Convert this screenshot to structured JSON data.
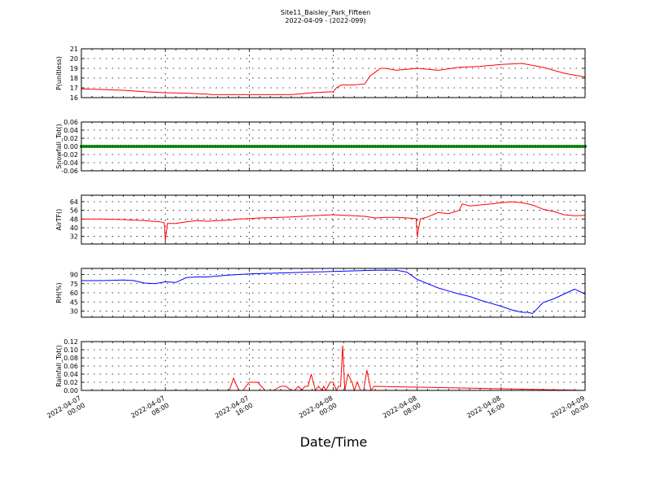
{
  "header": {
    "title": "Site11_Baisley_Park_Fifteen",
    "subtitle": "2022-04-09 - (2022-099)"
  },
  "chart_data": [
    {
      "type": "line",
      "ylabel": "P(unitless)",
      "color": "#ff0000",
      "ylim": [
        16,
        21
      ],
      "yticks": [
        16,
        17,
        18,
        19,
        20,
        21
      ],
      "x": [
        0,
        4,
        6,
        8,
        10,
        12,
        12.5,
        13,
        14,
        15,
        16,
        18,
        20,
        21,
        22,
        24,
        24.3,
        24.8,
        25,
        26,
        27,
        27.5,
        28,
        28.5,
        29,
        30,
        32,
        34,
        36,
        38,
        40,
        42,
        44,
        46,
        48
      ],
      "values": [
        16.9,
        16.75,
        16.6,
        16.5,
        16.45,
        16.35,
        16.3,
        16.3,
        16.3,
        16.3,
        16.3,
        16.3,
        16.3,
        16.4,
        16.5,
        16.6,
        17.0,
        17.3,
        17.3,
        17.3,
        17.4,
        18.2,
        18.6,
        19.0,
        19.0,
        18.8,
        19.0,
        18.8,
        19.1,
        19.2,
        19.4,
        19.5,
        19.1,
        18.5,
        18.1
      ],
      "x_detail_note": "",
      "series_points": []
    },
    {
      "type": "scatter",
      "ylabel": "Snowfall_Tot()",
      "color": "#008000",
      "ylim": [
        -0.06,
        0.06
      ],
      "yticks": [
        -0.06,
        -0.04,
        -0.02,
        0.0,
        0.02,
        0.04,
        0.06
      ],
      "x": [
        0,
        48
      ],
      "values": [
        0.0,
        0.0
      ]
    },
    {
      "type": "line",
      "ylabel": "AirTF()",
      "color": "#ff0000",
      "ylim": [
        25,
        70
      ],
      "yticks": [
        32,
        40,
        48,
        56,
        64
      ],
      "x": [
        0,
        2,
        4,
        6,
        7.5,
        7.9,
        8.0,
        8.2,
        9,
        10,
        11,
        12,
        13,
        14,
        15,
        16,
        17,
        18,
        19,
        20,
        22,
        24,
        25,
        26,
        27,
        28,
        29,
        30,
        31,
        31.9,
        32.0,
        32.3,
        33,
        34,
        35,
        36,
        36.3,
        37,
        38,
        39,
        40,
        41,
        42,
        43,
        44,
        45,
        46,
        47,
        48
      ],
      "values": [
        48,
        48,
        47.5,
        46.5,
        45.5,
        44.5,
        28,
        44,
        44,
        45.5,
        46.5,
        46,
        46.5,
        47,
        48,
        48.5,
        49,
        49.2,
        49.5,
        50,
        51,
        52,
        51.5,
        51,
        50.5,
        49,
        49.5,
        49.5,
        49,
        48.5,
        32,
        48,
        50,
        54,
        53,
        56,
        62,
        60,
        61,
        62,
        63,
        64,
        63,
        61,
        57,
        55,
        52,
        51,
        51.5
      ],
      "x_detail_note": "",
      "series_points": []
    },
    {
      "type": "line",
      "ylabel": "RH(%)",
      "color": "#0000ff",
      "ylim": [
        20,
        100
      ],
      "yticks": [
        30,
        45,
        60,
        75,
        90
      ],
      "x": [
        0,
        2,
        4,
        5,
        6,
        7,
        8,
        9,
        10,
        11,
        12,
        14,
        16,
        18,
        20,
        22,
        24,
        26,
        28,
        30,
        31,
        32,
        33,
        34,
        35,
        36,
        37,
        38,
        39,
        40,
        41,
        42,
        42.5,
        43,
        44,
        45,
        46,
        47,
        48
      ],
      "values": [
        80,
        80,
        81,
        80,
        76,
        75,
        78,
        77,
        85,
        86,
        86,
        89,
        91,
        92,
        93,
        94,
        95,
        96,
        97,
        97,
        94,
        82,
        75,
        68,
        63,
        58,
        54,
        48,
        43,
        38,
        32,
        28,
        28,
        26,
        44,
        50,
        58,
        66,
        58
      ],
      "x_detail_note": "",
      "series_points": []
    },
    {
      "type": "line",
      "ylabel": "Rainfall_Tot()",
      "color": "#ff0000",
      "ylim": [
        0,
        0.12
      ],
      "yticks": [
        0.0,
        0.02,
        0.04,
        0.06,
        0.08,
        0.1,
        0.12
      ],
      "x": [
        0,
        14.1,
        14.5,
        15.0,
        15.4,
        16.0,
        16.4,
        16.8,
        17.5,
        18.0,
        18.3,
        19.0,
        19.5,
        20.0,
        20.3,
        20.7,
        21.0,
        21.3,
        21.6,
        21.9,
        22.3,
        22.6,
        22.9,
        23.1,
        23.3,
        23.7,
        24.0,
        24.3,
        24.5,
        24.7,
        24.9,
        25.1,
        25.4,
        25.8,
        26.0,
        26.3,
        26.6,
        26.9,
        27.2,
        27.6,
        27.9,
        48
      ],
      "values": [
        0,
        0,
        0.03,
        0,
        0,
        0.02,
        0.02,
        0.02,
        0,
        0,
        0,
        0.01,
        0.01,
        0,
        0,
        0.01,
        0,
        0.01,
        0.01,
        0.04,
        0,
        0.01,
        0,
        0.01,
        0,
        0.02,
        0.02,
        0,
        0.01,
        0.01,
        0.11,
        0,
        0.04,
        0.02,
        0,
        0.02,
        0,
        0,
        0.05,
        0,
        0.01,
        0
      ]
    }
  ],
  "xaxis": {
    "label": "Date/Time",
    "ticks": [
      "2022-04-07 00:00",
      "2022-04-07 08:00",
      "2022-04-07 16:00",
      "2022-04-08 00:00",
      "2022-04-08 08:00",
      "2022-04-08 16:00",
      "2022-04-09 00:00"
    ],
    "range_hours": [
      0,
      48
    ]
  }
}
